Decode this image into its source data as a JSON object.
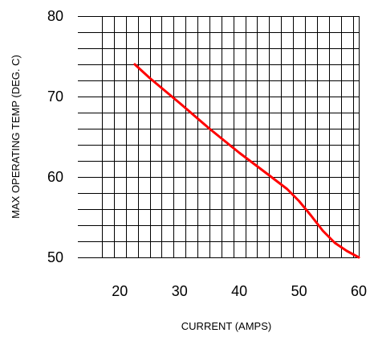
{
  "chart_data": {
    "type": "line",
    "title": "",
    "xlabel": "CURRENT (AMPS)",
    "ylabel": "MAX OPERATING TEMP (DEG. C)",
    "xlim": [
      17,
      60
    ],
    "ylim": [
      50,
      80
    ],
    "x_ticks": [
      20,
      30,
      40,
      50,
      60
    ],
    "y_ticks": [
      50,
      60,
      70,
      80
    ],
    "grid": true,
    "grid_minor_x": 2,
    "grid_minor_y": 2,
    "line_color": "#ff0000",
    "grid_color": "#000000",
    "series": [
      {
        "x": [
          22.5,
          25,
          30,
          35,
          40,
          45,
          48,
          50,
          52,
          54,
          56,
          58,
          60
        ],
        "y": [
          74,
          72.3,
          69.2,
          66,
          63,
          60.2,
          58.5,
          57,
          55.2,
          53.3,
          51.8,
          50.8,
          50
        ]
      }
    ]
  }
}
